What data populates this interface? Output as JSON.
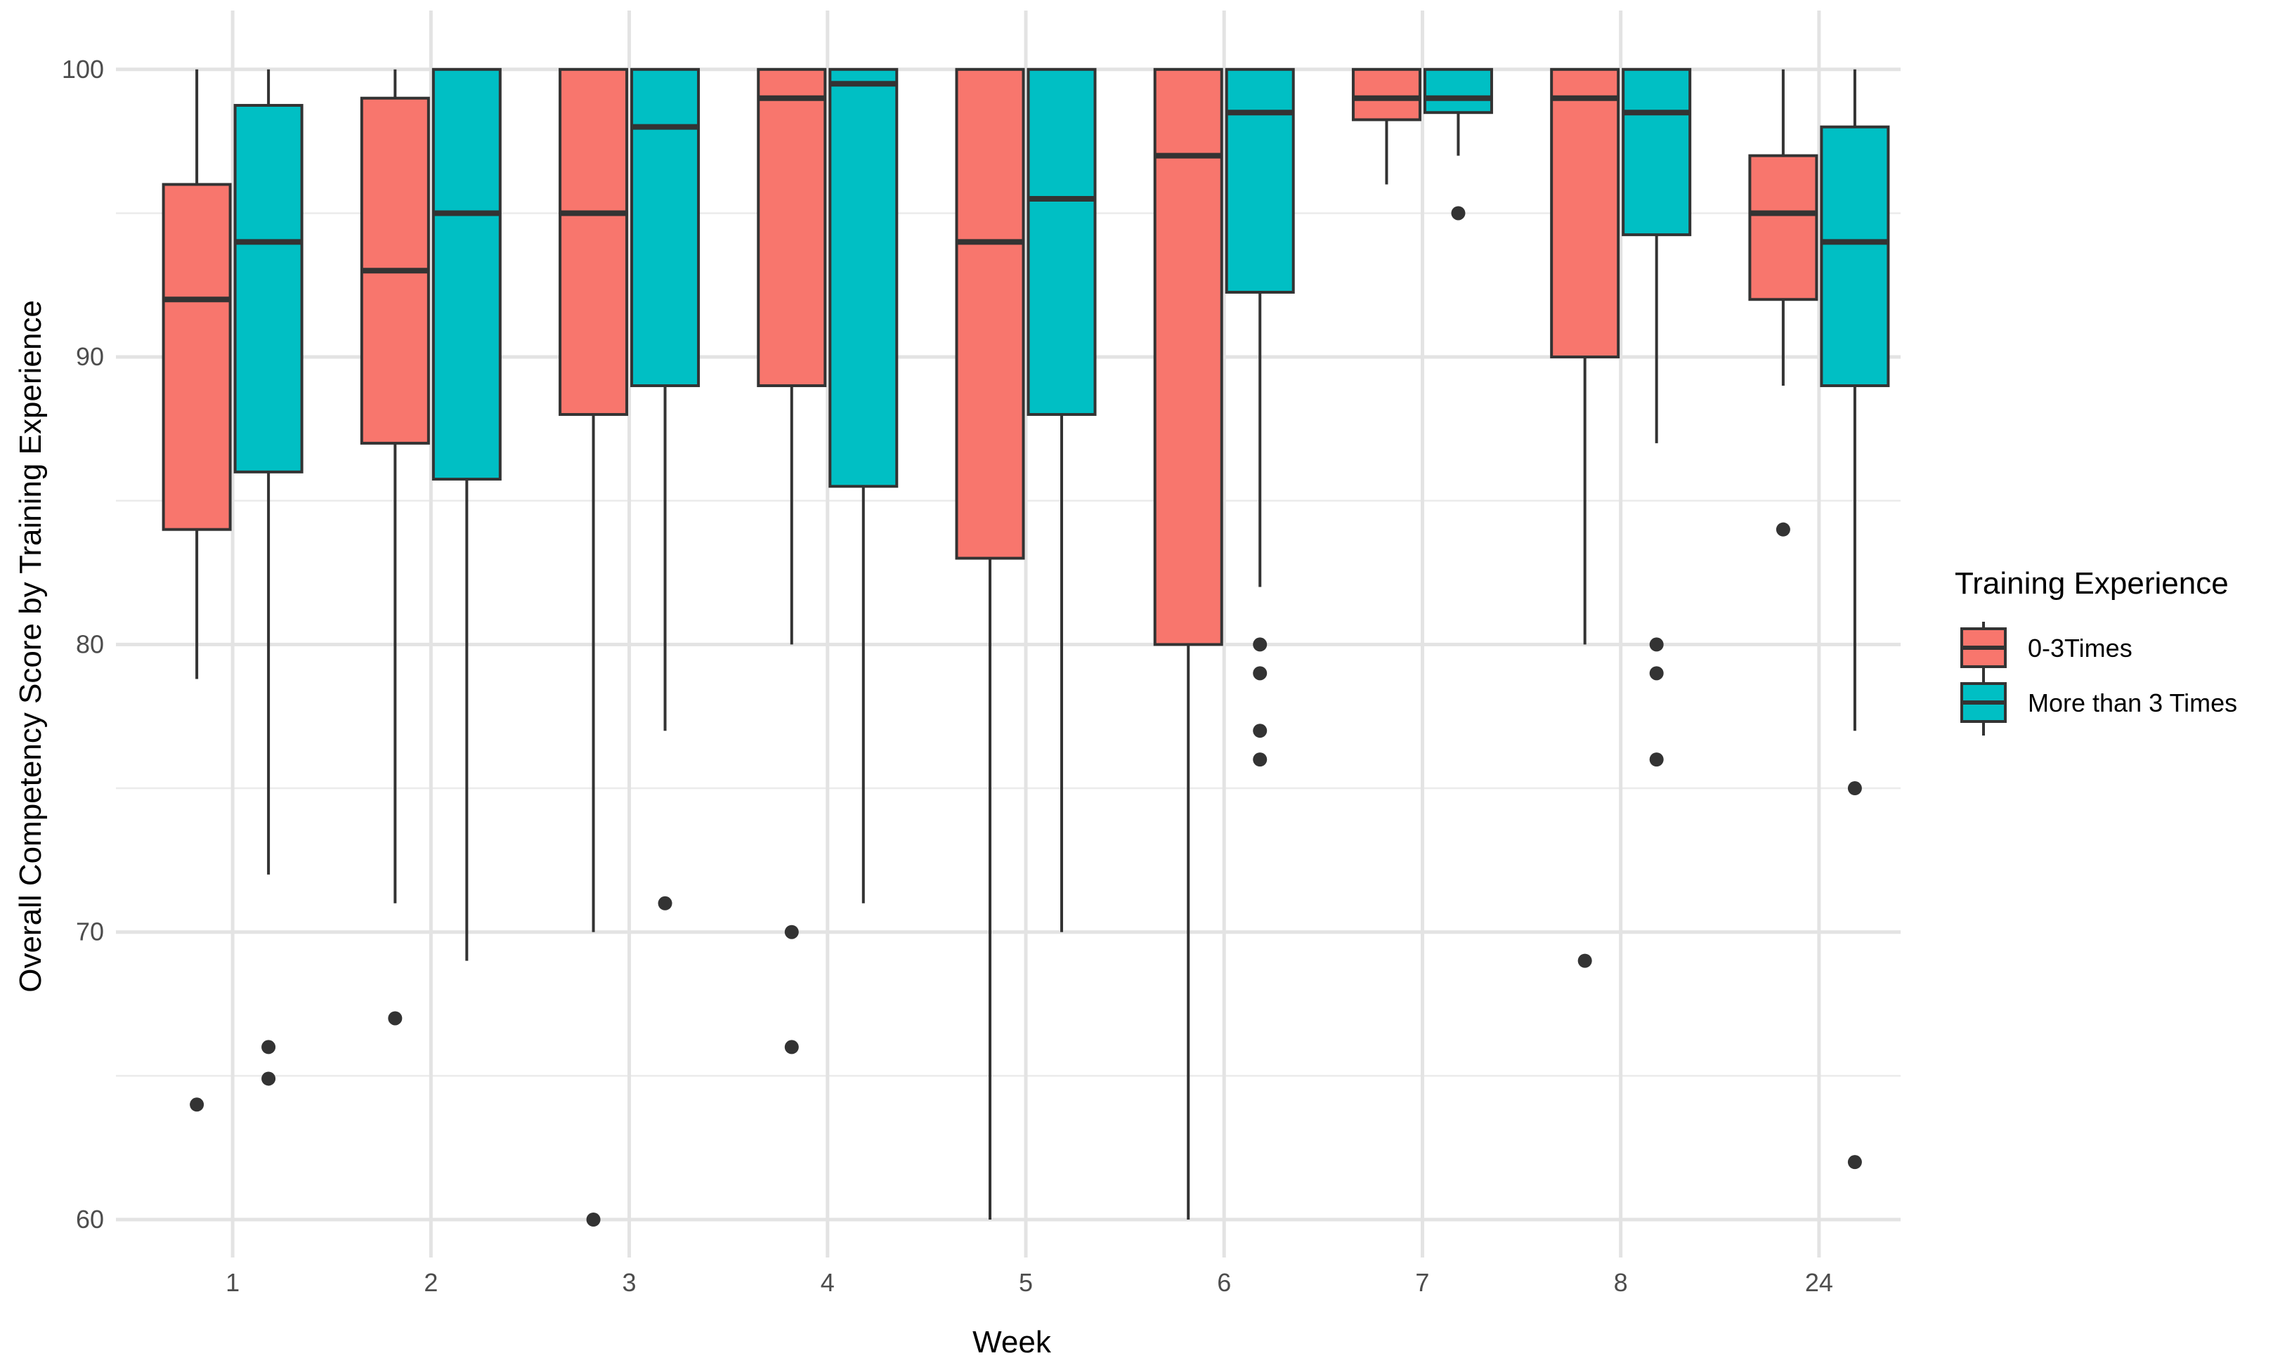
{
  "chart_data": {
    "type": "boxplot",
    "xlabel": "Week",
    "ylabel": "Overall Competency Score by Training Experience",
    "ylim": [
      58.5,
      102
    ],
    "yticks": [
      60,
      70,
      80,
      90,
      100
    ],
    "grid": true,
    "legend": {
      "title": "Training Experience",
      "position": "right",
      "entries": [
        "0-3Times",
        "More than 3 Times"
      ]
    },
    "categories": [
      "1",
      "2",
      "3",
      "4",
      "5",
      "6",
      "7",
      "8",
      "24"
    ],
    "series": [
      {
        "name": "0-3Times",
        "color": "#F8766D",
        "boxes": [
          {
            "min": 78.8,
            "q1": 84,
            "median": 92,
            "q3": 96,
            "max": 100,
            "outliers": [
              64
            ]
          },
          {
            "min": 71,
            "q1": 87,
            "median": 93,
            "q3": 99,
            "max": 100,
            "outliers": [
              67
            ]
          },
          {
            "min": 70,
            "q1": 88,
            "median": 95,
            "q3": 100,
            "max": 100,
            "outliers": [
              60
            ]
          },
          {
            "min": 80,
            "q1": 89,
            "median": 99,
            "q3": 100,
            "max": 100,
            "outliers": [
              70,
              66
            ]
          },
          {
            "min": 60,
            "q1": 83,
            "median": 94,
            "q3": 100,
            "max": 100,
            "outliers": []
          },
          {
            "min": 60,
            "q1": 80,
            "median": 97,
            "q3": 100,
            "max": 100,
            "outliers": []
          },
          {
            "min": 96,
            "q1": 98.25,
            "median": 99,
            "q3": 100,
            "max": 100,
            "outliers": []
          },
          {
            "min": 80,
            "q1": 90,
            "median": 99,
            "q3": 100,
            "max": 100,
            "outliers": [
              69
            ]
          },
          {
            "min": 89,
            "q1": 92,
            "median": 95,
            "q3": 97,
            "max": 100,
            "outliers": [
              84
            ]
          }
        ]
      },
      {
        "name": "More than 3 Times",
        "color": "#00BFC4",
        "boxes": [
          {
            "min": 72,
            "q1": 86,
            "median": 94,
            "q3": 98.75,
            "max": 100,
            "outliers": [
              66,
              64.9
            ]
          },
          {
            "min": 69,
            "q1": 85.75,
            "median": 95,
            "q3": 100,
            "max": 100,
            "outliers": []
          },
          {
            "min": 77,
            "q1": 89,
            "median": 98,
            "q3": 100,
            "max": 100,
            "outliers": [
              71
            ]
          },
          {
            "min": 71,
            "q1": 85.5,
            "median": 99.5,
            "q3": 100,
            "max": 100,
            "outliers": []
          },
          {
            "min": 70,
            "q1": 88,
            "median": 95.5,
            "q3": 100,
            "max": 100,
            "outliers": []
          },
          {
            "min": 82,
            "q1": 92.25,
            "median": 98.5,
            "q3": 100,
            "max": 100,
            "outliers": [
              80,
              79,
              77,
              76
            ]
          },
          {
            "min": 97,
            "q1": 98.5,
            "median": 99,
            "q3": 100,
            "max": 100,
            "outliers": [
              95
            ]
          },
          {
            "min": 87,
            "q1": 94.25,
            "median": 98.5,
            "q3": 100,
            "max": 100,
            "outliers": [
              80,
              79,
              76
            ]
          },
          {
            "min": 77,
            "q1": 89,
            "median": 94,
            "q3": 98,
            "max": 100,
            "outliers": [
              75,
              62
            ]
          }
        ]
      }
    ]
  }
}
